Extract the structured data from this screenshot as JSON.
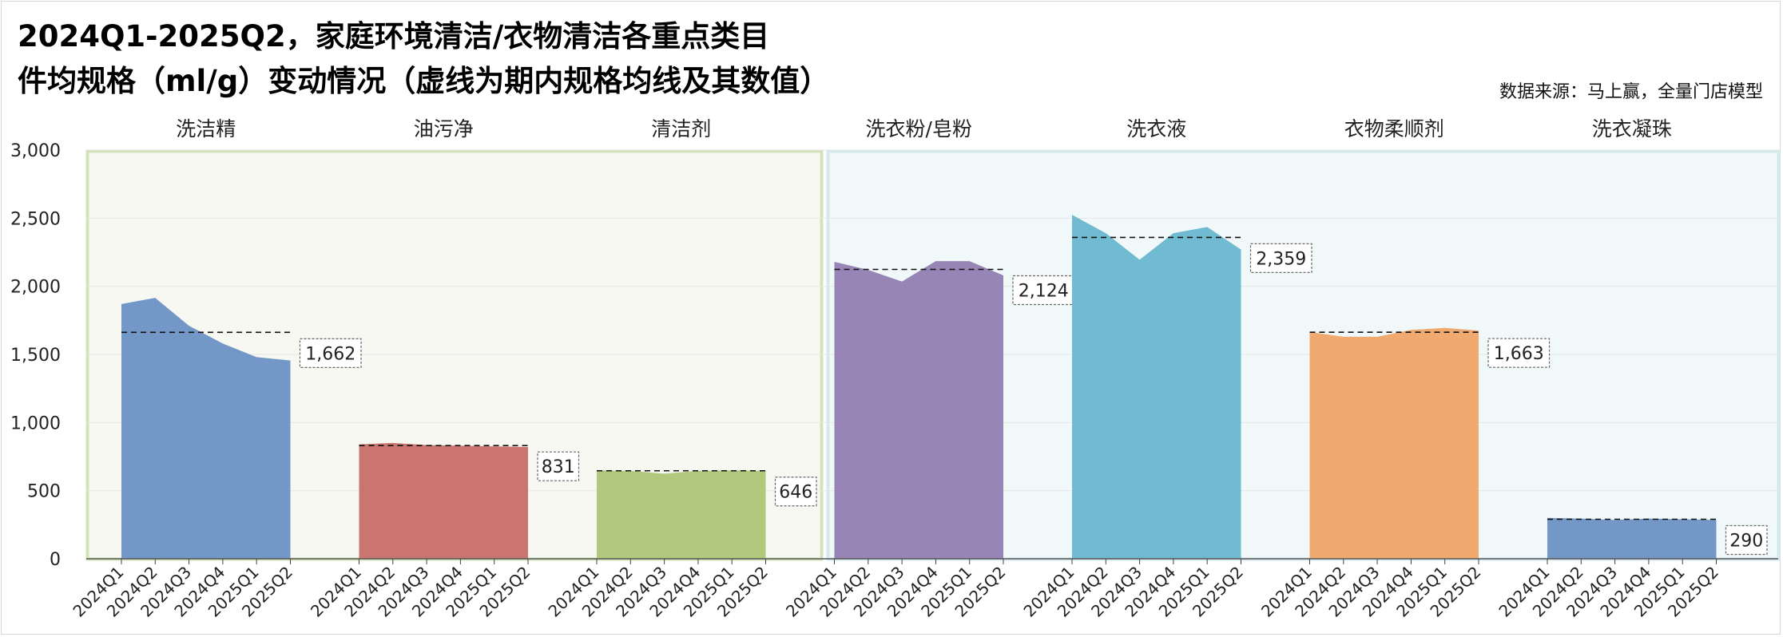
{
  "title_line1": "2024Q1-2025Q2，家庭环境清洁/衣物清洁各重点类目",
  "title_line2": "件均规格（ml/g）变动情况（虚线为期内规格均线及其数值）",
  "source": "数据来源：马上赢，全量门店模型",
  "chart_data": {
    "type": "area",
    "title": "2024Q1-2025Q2，家庭环境清洁/衣物清洁各重点类目 件均规格（ml/g）变动情况（虚线为期内规格均线及其数值）",
    "x": [
      "2024Q1",
      "2024Q2",
      "2024Q3",
      "2024Q4",
      "2025Q1",
      "2025Q2"
    ],
    "ylim": [
      0,
      3000
    ],
    "yticks": [
      0,
      500,
      1000,
      1500,
      2000,
      2500,
      3000
    ],
    "ytick_labels": [
      "0",
      "500",
      "1,000",
      "1,500",
      "2,000",
      "2,500",
      "3,000"
    ],
    "grid": true,
    "groups": [
      {
        "name": "家庭环境清洁",
        "background": "#f7f8f2",
        "border": "#d3e3b9",
        "series": [
          0,
          1,
          2
        ]
      },
      {
        "name": "衣物清洁",
        "background": "#f1f8f9",
        "border": "#d3e9ee",
        "series": [
          3,
          4,
          5,
          6
        ]
      }
    ],
    "series": [
      {
        "name": "洗洁精",
        "color": "#7397c6",
        "values": [
          1870,
          1915,
          1710,
          1580,
          1480,
          1455
        ],
        "avg": 1662,
        "avg_label": "1,662"
      },
      {
        "name": "油污净",
        "color": "#cb7570",
        "values": [
          840,
          850,
          835,
          830,
          825,
          820
        ],
        "avg": 831,
        "avg_label": "831"
      },
      {
        "name": "清洁剂",
        "color": "#b0c97c",
        "values": [
          650,
          645,
          625,
          645,
          650,
          645
        ],
        "avg": 646,
        "avg_label": "646"
      },
      {
        "name": "洗衣粉/皂粉",
        "color": "#9785b5",
        "values": [
          2180,
          2120,
          2035,
          2185,
          2185,
          2080
        ],
        "avg": 2124,
        "avg_label": "2,124"
      },
      {
        "name": "洗衣液",
        "color": "#70bbd1",
        "values": [
          2525,
          2390,
          2195,
          2390,
          2435,
          2270
        ],
        "avg": 2359,
        "avg_label": "2,359"
      },
      {
        "name": "衣物柔顺剂",
        "color": "#f0a96f",
        "values": [
          1665,
          1630,
          1630,
          1680,
          1695,
          1675
        ],
        "avg": 1663,
        "avg_label": "1,663"
      },
      {
        "name": "洗衣凝珠",
        "color": "#7397c6",
        "values": [
          300,
          295,
          285,
          295,
          290,
          285
        ],
        "avg": 290,
        "avg_label": "290"
      }
    ]
  }
}
